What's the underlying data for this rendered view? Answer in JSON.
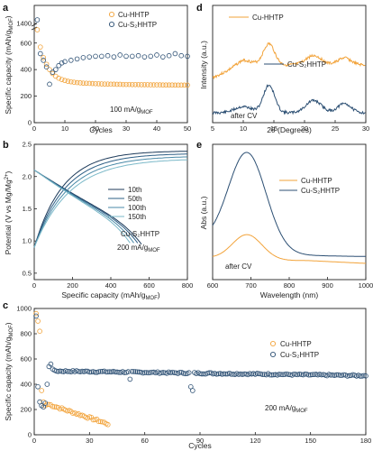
{
  "chart_data": [
    {
      "panel": "a",
      "type": "scatter",
      "xlabel": "Cycles",
      "ylabel": "Specific capacity (mAh/g",
      "ylabel_sub": "MOF",
      "ylabel_end": ")",
      "annotation": "100 mA/g",
      "annotation_sub": "MOF",
      "xlim": [
        0,
        50
      ],
      "xticks": [
        0,
        10,
        20,
        30,
        40,
        50
      ],
      "ylim_lower": [
        0,
        700
      ],
      "yticks_lower": [
        0,
        200,
        400,
        600
      ],
      "ytick_upper": [
        1400
      ],
      "series": [
        {
          "name": "Cu-HHTP",
          "color": "#f2a33a",
          "x": [
            1,
            2,
            3,
            4,
            5,
            6,
            7,
            8,
            9,
            10,
            11,
            12,
            13,
            14,
            15,
            16,
            17,
            18,
            19,
            20,
            21,
            22,
            23,
            24,
            25,
            26,
            27,
            28,
            29,
            30,
            31,
            32,
            33,
            34,
            35,
            36,
            37,
            38,
            39,
            40,
            41,
            42,
            43,
            44,
            45,
            46,
            47,
            48,
            49,
            50
          ],
          "y": [
            700,
            570,
            490,
            440,
            400,
            370,
            350,
            335,
            325,
            318,
            312,
            308,
            305,
            302,
            300,
            298,
            297,
            296,
            295,
            294,
            293,
            292,
            291,
            291,
            290,
            290,
            289,
            289,
            288,
            288,
            288,
            287,
            287,
            287,
            286,
            286,
            286,
            285,
            285,
            285,
            285,
            284,
            284,
            284,
            284,
            283,
            283,
            283,
            283,
            283
          ]
        },
        {
          "name": "Cu-S₂HHTP",
          "color": "#2c4f73",
          "x": [
            1,
            2,
            3,
            4,
            5,
            6,
            7,
            8,
            9,
            10,
            12,
            14,
            16,
            18,
            20,
            22,
            24,
            26,
            28,
            30,
            32,
            34,
            36,
            38,
            40,
            42,
            44,
            46,
            48,
            50
          ],
          "y": [
            1450,
            520,
            470,
            420,
            290,
            380,
            400,
            430,
            450,
            460,
            470,
            480,
            490,
            495,
            500,
            500,
            505,
            495,
            510,
            500,
            500,
            505,
            495,
            500,
            510,
            495,
            505,
            520,
            505,
            500
          ]
        }
      ]
    },
    {
      "panel": "b",
      "type": "line",
      "xlabel": "Specific capacity (mAh/g",
      "xlabel_sub": "MOF",
      "xlabel_end": ")",
      "ylabel": "Potential (V vs Mg/Mg",
      "ylabel_sup": "2+",
      "ylabel_end": ")",
      "annotation_material": "Cu-S₂HHTP",
      "annotation_rate": "200 mA/g",
      "annotation_rate_sub": "MOF",
      "xlim": [
        0,
        800
      ],
      "xticks": [
        0,
        200,
        400,
        600,
        800
      ],
      "ylim": [
        0.4,
        2.5
      ],
      "yticks": [
        0.5,
        1.0,
        1.5,
        2.0,
        2.5
      ],
      "series": [
        {
          "name": "10th",
          "color": "#1c3a5a",
          "end_cap": 560,
          "charge_max": 800
        },
        {
          "name": "50th",
          "color": "#2e5f86",
          "end_cap": 545,
          "charge_max": 800
        },
        {
          "name": "100th",
          "color": "#4a8aa8",
          "end_cap": 525,
          "charge_max": 800
        },
        {
          "name": "150th",
          "color": "#7ab8c8",
          "end_cap": 505,
          "charge_max": 800
        }
      ]
    },
    {
      "panel": "c",
      "type": "scatter",
      "xlabel": "Cycles",
      "ylabel": "Specific capacity (mAh/g",
      "ylabel_sub": "MOF",
      "ylabel_end": ")",
      "annotation": "200 mA/g",
      "annotation_sub": "MOF",
      "xlim": [
        0,
        180
      ],
      "xticks": [
        0,
        30,
        60,
        90,
        120,
        150,
        180
      ],
      "ylim": [
        0,
        1000
      ],
      "yticks": [
        0,
        200,
        400,
        600,
        800,
        1000
      ],
      "series": [
        {
          "name": "Cu-HHTP",
          "color": "#f2a33a"
        },
        {
          "name": "Cu-S₂HHTP",
          "color": "#2c4f73"
        }
      ]
    },
    {
      "panel": "d",
      "type": "line",
      "xlabel": "2θ (Degrees)",
      "ylabel": "Intensity (a.u.)",
      "annotation": "after CV",
      "xlim": [
        5,
        30
      ],
      "xticks": [
        5,
        10,
        15,
        20,
        25,
        30
      ],
      "series": [
        {
          "name": "Cu-HHTP",
          "color": "#f2a33a"
        },
        {
          "name": "Cu-S₂HHTP",
          "color": "#2c4f73"
        }
      ]
    },
    {
      "panel": "e",
      "type": "line",
      "xlabel": "Wavelength (nm)",
      "ylabel": "Abs (a.u.)",
      "annotation": "after CV",
      "xlim": [
        600,
        1000
      ],
      "xticks": [
        600,
        700,
        800,
        900,
        1000
      ],
      "series": [
        {
          "name": "Cu-HHTP",
          "color": "#f2a33a"
        },
        {
          "name": "Cu-S₂HHTP",
          "color": "#2c4f73"
        }
      ]
    }
  ]
}
